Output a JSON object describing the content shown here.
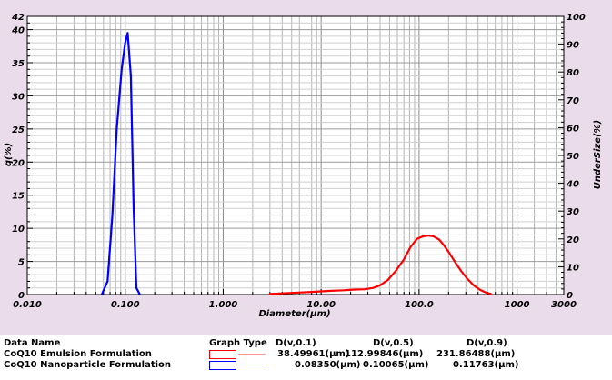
{
  "chart_data": {
    "type": "line",
    "xlabel": "Diameter(μm)",
    "ylabel_left": "q(%)",
    "ylabel_right": "UnderSize(%)",
    "x_scale": "log",
    "xlim": [
      0.01,
      3000
    ],
    "ylim_left": [
      0,
      42
    ],
    "ylim_right": [
      0,
      100
    ],
    "x_tick_labels": [
      "0.010",
      "0.100",
      "1.000",
      "10.00",
      "100.0",
      "1000",
      "3000"
    ],
    "x_tick_values": [
      0.01,
      0.1,
      1,
      10,
      100,
      1000,
      3000
    ],
    "y_left_ticks": [
      0,
      5,
      10,
      15,
      20,
      25,
      30,
      35,
      40,
      42
    ],
    "y_right_ticks": [
      0,
      10,
      20,
      30,
      40,
      50,
      60,
      70,
      80,
      90,
      100
    ],
    "grid": true,
    "series": [
      {
        "name": "CoQ10 Emulsion Formulation",
        "color": "#ff0000",
        "x": [
          3.0,
          5.0,
          8.0,
          12.0,
          17.0,
          22.0,
          28.0,
          34.0,
          40.0,
          48.0,
          58.0,
          70.0,
          82.0,
          95.0,
          110.0,
          125.0,
          140.0,
          160.0,
          180.0,
          205.0,
          235.0,
          270.0,
          310.0,
          360.0,
          420.0,
          480.0,
          540.0
        ],
        "y": [
          0.1,
          0.25,
          0.4,
          0.55,
          0.65,
          0.75,
          0.8,
          1.0,
          1.4,
          2.2,
          3.6,
          5.3,
          7.2,
          8.4,
          8.8,
          8.9,
          8.8,
          8.3,
          7.4,
          6.2,
          4.8,
          3.5,
          2.4,
          1.4,
          0.7,
          0.3,
          0.1
        ]
      },
      {
        "name": "CoQ10 Nanoparticle Formulation",
        "color": "#0000ff",
        "x": [
          0.058,
          0.066,
          0.074,
          0.082,
          0.092,
          0.1,
          0.106,
          0.114,
          0.122,
          0.13,
          0.14
        ],
        "y": [
          0.1,
          2.0,
          12.0,
          25.0,
          34.0,
          38.0,
          39.5,
          33.0,
          13.0,
          1.0,
          0.1
        ]
      }
    ]
  },
  "legend": {
    "header": {
      "data_name": "Data Name",
      "graph_type": "Graph Type",
      "d10": "D(v,0.1)",
      "d50": "D(v,0.5)",
      "d90": "D(v,0.9)"
    },
    "rows": [
      {
        "name": "CoQ10 Emulsion Formulation",
        "color": "#ff0000",
        "d10": "38.49961(μm)",
        "d50": "112.99846(μm)",
        "d90": "231.86488(μm)"
      },
      {
        "name": "CoQ10 Nanoparticle Formulation",
        "color": "#0000ff",
        "d10": "0.08350(μm)",
        "d50": "0.10065(μm)",
        "d90": "0.11763(μm)"
      }
    ]
  }
}
